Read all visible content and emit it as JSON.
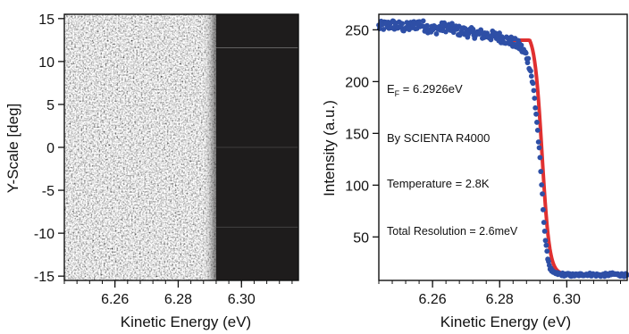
{
  "chart_data": [
    {
      "type": "heatmap",
      "xlabel": "Kinetic Energy (eV)",
      "ylabel": "Y-Scale [deg]",
      "xlim": [
        6.244,
        6.318
      ],
      "ylim": [
        -15.5,
        15.5
      ],
      "xticks": [
        "6.26",
        "6.28",
        "6.30"
      ],
      "xtick_values": [
        6.26,
        6.28,
        6.3
      ],
      "yticks": [
        "15",
        "10",
        "5",
        "0",
        "-5",
        "-10",
        "-15"
      ],
      "ytick_values": [
        15,
        10,
        5,
        0,
        -5,
        -10,
        -15
      ],
      "edge_energy": 6.292,
      "colors": {
        "below_edge": "#bdbdbd",
        "above_edge": "#1e1c1c"
      }
    },
    {
      "type": "scatter",
      "xlabel": "Kinetic Energy (eV)",
      "ylabel": "Intensity (a.u.)",
      "xlim": [
        6.244,
        6.318
      ],
      "ylim": [
        8,
        265
      ],
      "xticks": [
        "6.26",
        "6.28",
        "6.30"
      ],
      "xtick_values": [
        6.26,
        6.28,
        6.3
      ],
      "yticks": [
        "250",
        "200",
        "150",
        "100",
        "50"
      ],
      "ytick_values": [
        250,
        200,
        150,
        100,
        50
      ],
      "fermi_edge_eV": 6.2926,
      "fit_width_eV": 0.0011,
      "high_level": 248,
      "low_level": 14,
      "series": [
        {
          "kind": "points",
          "color": "#2e4fa6",
          "x": [
            6.244,
            6.248,
            6.252,
            6.256,
            6.26,
            6.264,
            6.268,
            6.272,
            6.276,
            6.28,
            6.284,
            6.286,
            6.288,
            6.289,
            6.29,
            6.291,
            6.2915,
            6.292,
            6.2925,
            6.293,
            6.2935,
            6.294,
            6.295,
            6.296,
            6.298,
            6.302,
            6.306,
            6.31,
            6.314,
            6.318
          ],
          "y": [
            253,
            255,
            252,
            256,
            250,
            253,
            249,
            247,
            245,
            243,
            238,
            234,
            225,
            215,
            195,
            165,
            145,
            125,
            100,
            75,
            52,
            35,
            20,
            15,
            14,
            13,
            14,
            13,
            14,
            13
          ]
        },
        {
          "kind": "fit",
          "color": "#e03030"
        }
      ],
      "annotations": [
        {
          "main": "E",
          "sub": "F",
          "rest": " = 6.2926eV"
        },
        {
          "text": "By SCIENTA R4000"
        },
        {
          "text": "Temperature = 2.8K"
        },
        {
          "text": "Total Resolution = 2.6meV"
        }
      ]
    }
  ]
}
